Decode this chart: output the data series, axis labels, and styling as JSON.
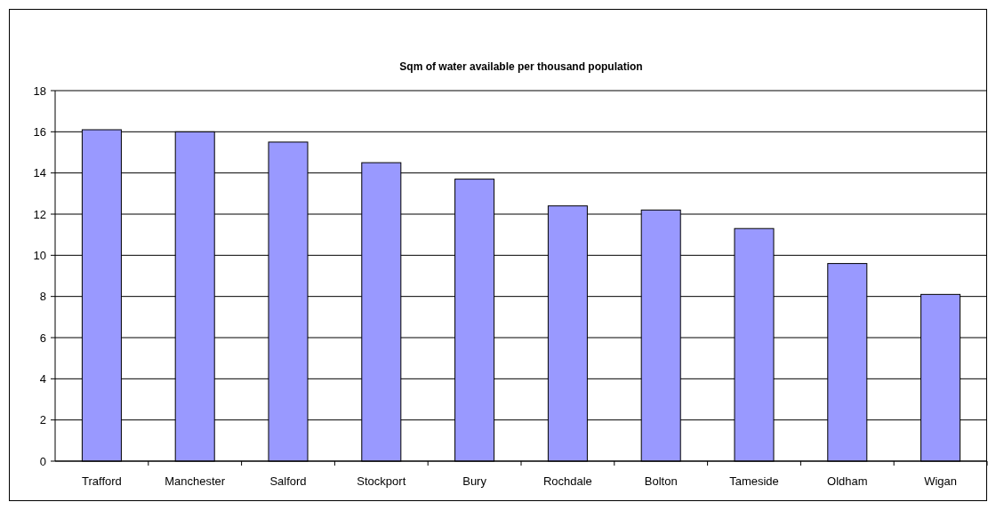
{
  "chart_data": {
    "type": "bar",
    "title": "Sqm of water available per thousand population",
    "categories": [
      "Trafford",
      "Manchester",
      "Salford",
      "Stockport",
      "Bury",
      "Rochdale",
      "Bolton",
      "Tameside",
      "Oldham",
      "Wigan"
    ],
    "values": [
      16.1,
      16.0,
      15.5,
      14.5,
      13.7,
      12.4,
      12.2,
      11.3,
      9.6,
      8.1
    ],
    "color": "#9999ff",
    "ylim": [
      0,
      18
    ],
    "yticks": [
      0,
      2,
      4,
      6,
      8,
      10,
      12,
      14,
      16,
      18
    ],
    "grid": "y"
  }
}
